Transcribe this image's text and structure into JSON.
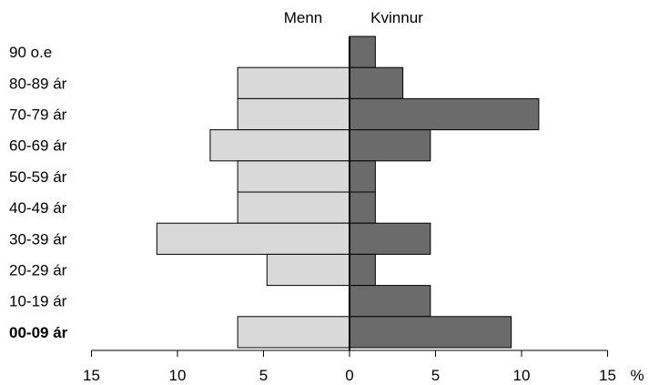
{
  "chart_data": {
    "type": "bar",
    "orientation": "horizontal",
    "layout": "population-pyramid",
    "categories": [
      "90 o.e",
      "80-89 ár",
      "70-79 ár",
      "60-69 ár",
      "50-59 ár",
      "40-49 ár",
      "30-39 ár",
      "20-29 ár",
      "10-19 ár",
      "00-09 ár"
    ],
    "series": [
      {
        "name": "Menn",
        "side": "left",
        "color": "#d9d9d9",
        "values": [
          0,
          6.5,
          6.5,
          8.1,
          6.5,
          6.5,
          11.2,
          4.8,
          0,
          6.5
        ]
      },
      {
        "name": "Kvinnur",
        "side": "right",
        "color": "#6b6b6b",
        "values": [
          1.5,
          3.1,
          11.0,
          4.7,
          1.5,
          1.5,
          4.7,
          1.5,
          4.7,
          9.4
        ]
      }
    ],
    "xlim": [
      -15,
      15
    ],
    "x_ticks": [
      {
        "value": -15,
        "label": "15"
      },
      {
        "value": -10,
        "label": "10"
      },
      {
        "value": -5,
        "label": "5"
      },
      {
        "value": 0,
        "label": "0"
      },
      {
        "value": 5,
        "label": "5"
      },
      {
        "value": 10,
        "label": "10"
      },
      {
        "value": 15,
        "label": "15"
      }
    ],
    "x_unit": "%",
    "grid": false,
    "legend": "top-center"
  }
}
